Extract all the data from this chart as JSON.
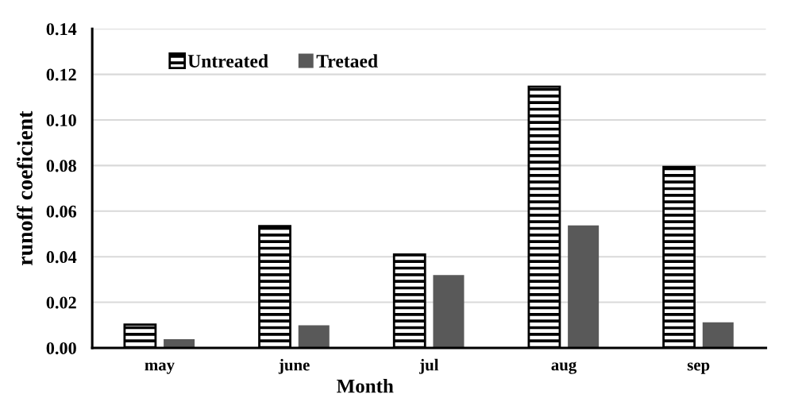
{
  "chart_data": {
    "type": "bar",
    "xlabel": "Month",
    "ylabel": "runoff coeficient",
    "categories": [
      "may",
      "june",
      "jul",
      "aug",
      "sep"
    ],
    "series": [
      {
        "name": "Untreated",
        "color": "#000000",
        "values": [
          0.0102,
          0.0534,
          0.041,
          0.1146,
          0.0794
        ]
      },
      {
        "name": "Tretaed",
        "color": "#595959",
        "values": [
          0.0038,
          0.0099,
          0.032,
          0.0537,
          0.0112
        ]
      }
    ],
    "ylim": [
      0,
      0.14
    ],
    "yticks": [
      {
        "value": 0,
        "label": "0.00"
      },
      {
        "value": 0.02,
        "label": "0.02"
      },
      {
        "value": 0.04,
        "label": "0.04"
      },
      {
        "value": 0.06,
        "label": "0.06"
      },
      {
        "value": 0.08,
        "label": "0.08"
      },
      {
        "value": 0.1,
        "label": "0.10"
      },
      {
        "value": 0.12,
        "label": "0.12"
      },
      {
        "value": 0.14,
        "label": "0.14"
      }
    ],
    "grid": "y",
    "legend": "top left"
  }
}
